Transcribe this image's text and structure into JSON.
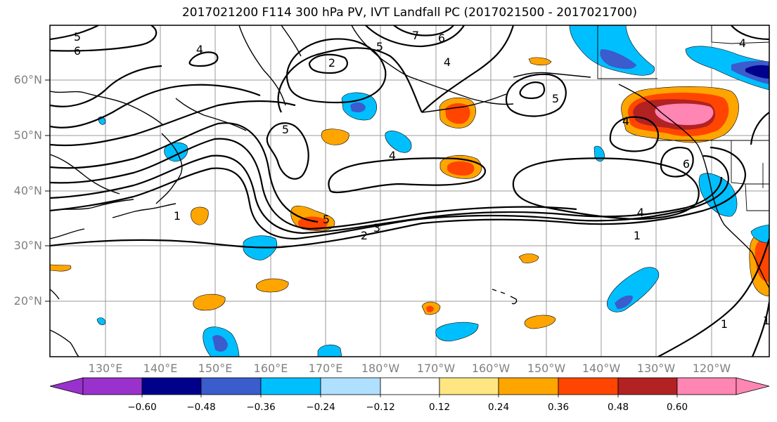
{
  "title": "2017021200 F114 300 hPa PV, IVT Landfall PC (2017021500 - 2017021700)",
  "map": {
    "lat_ticks": [
      "60°N",
      "50°N",
      "40°N",
      "30°N",
      "20°N"
    ],
    "lon_ticks": [
      "130°E",
      "140°E",
      "150°E",
      "160°E",
      "170°E",
      "180°W",
      "170°W",
      "160°W",
      "150°W",
      "140°W",
      "130°W",
      "120°W"
    ],
    "contour_labels": [
      "5",
      "6",
      "4",
      "2",
      "7",
      "6",
      "5",
      "4",
      "4",
      "5",
      "1",
      "5",
      "3",
      "2",
      "4",
      "1",
      "5",
      "4",
      "1",
      "1",
      "6",
      "4"
    ]
  },
  "colorbar": {
    "tick_labels": [
      "−0.60",
      "−0.48",
      "−0.36",
      "−0.24",
      "−0.12",
      "0.12",
      "0.24",
      "0.36",
      "0.48",
      "0.60"
    ],
    "colors": [
      "#9932cc",
      "#00008b",
      "#3a5ccc",
      "#00bfff",
      "#b0e0ff",
      "#ffffff",
      "#ffe680",
      "#ffa500",
      "#ff4500",
      "#b22222",
      "#ff85b3"
    ]
  }
}
